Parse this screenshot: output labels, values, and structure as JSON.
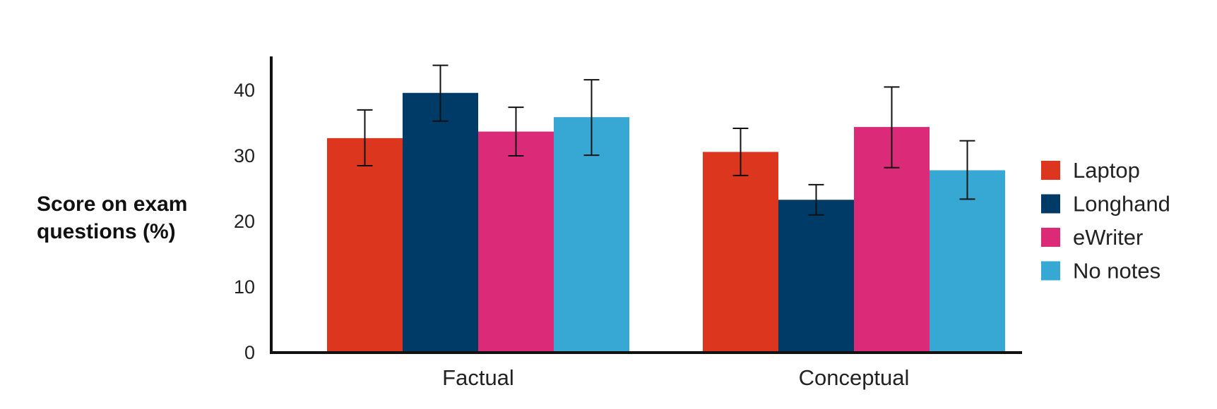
{
  "chart_data": {
    "type": "bar",
    "title": "",
    "xlabel": "",
    "ylabel": "Score on exam questions (%)",
    "ylabel_lines": [
      "Score on exam",
      "questions (%)"
    ],
    "categories": [
      "Factual",
      "Conceptual"
    ],
    "ylim": [
      0,
      45
    ],
    "yticks": [
      0,
      10,
      20,
      30,
      40
    ],
    "grid": false,
    "legend_position": "right",
    "series": [
      {
        "name": "Laptop",
        "color": "#DC361F",
        "values": [
          32.7,
          30.6
        ],
        "error_low": [
          28.5,
          27.0
        ],
        "error_high": [
          37.0,
          34.2
        ]
      },
      {
        "name": "Longhand",
        "color": "#003B68",
        "values": [
          39.6,
          23.3
        ],
        "error_low": [
          35.3,
          21.0
        ],
        "error_high": [
          43.8,
          25.6
        ]
      },
      {
        "name": "eWriter",
        "color": "#DA2A78",
        "values": [
          33.7,
          34.4
        ],
        "error_low": [
          30.0,
          28.2
        ],
        "error_high": [
          37.4,
          40.5
        ]
      },
      {
        "name": "No notes",
        "color": "#37A7D4",
        "values": [
          35.9,
          27.8
        ],
        "error_low": [
          30.1,
          23.4
        ],
        "error_high": [
          41.6,
          32.3
        ]
      }
    ]
  }
}
